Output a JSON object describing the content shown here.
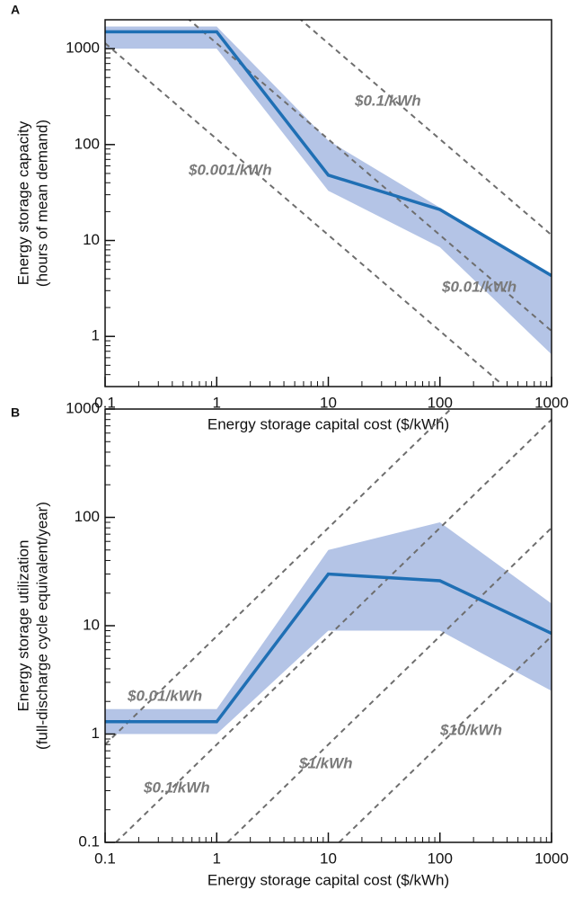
{
  "chart_data": [
    {
      "type": "line",
      "panel_label": "A",
      "xlabel": "Energy storage capital cost ($/kWh)",
      "ylabel": [
        "Energy storage capacity",
        "(hours of mean demand)"
      ],
      "log_x": true,
      "log_y": true,
      "minor_ticks": true,
      "x": [
        0.1,
        1,
        10,
        100,
        1000
      ],
      "xlim": [
        0.1,
        1000
      ],
      "xticks": [
        0.1,
        1,
        10,
        100,
        1000
      ],
      "ylim": [
        0.3,
        2000
      ],
      "yticks": [
        1,
        10,
        100,
        1000
      ],
      "series": [
        {
          "color": "#1f6fb4",
          "values": [
            1500,
            1500,
            48,
            21,
            4.3
          ]
        }
      ],
      "band": {
        "color": "#b4c4e6",
        "upper": [
          1700,
          1700,
          110,
          22,
          4.5
        ],
        "lower": [
          1000,
          1000,
          33,
          8.5,
          0.65
        ]
      },
      "reference_lines": [
        {
          "label": "$0.1/kWh",
          "x": [
            5.4,
            1000
          ],
          "y": [
            2100,
            11.4
          ]
        },
        {
          "label": "$0.01/kWh",
          "x": [
            0.54,
            1000
          ],
          "y": [
            2100,
            1.14
          ]
        },
        {
          "label": "$0.001/kWh",
          "x": [
            0.1,
            356
          ],
          "y": [
            1140,
            0.32
          ]
        }
      ]
    },
    {
      "type": "line",
      "panel_label": "B",
      "xlabel": "Energy storage capital cost ($/kWh)",
      "ylabel": [
        "Energy storage utilization",
        "(full-discharge cycle equivalent/year)"
      ],
      "log_x": true,
      "log_y": true,
      "minor_ticks": true,
      "x": [
        0.1,
        1,
        10,
        100,
        1000
      ],
      "xlim": [
        0.1,
        1000
      ],
      "xticks": [
        0.1,
        1,
        10,
        100,
        1000
      ],
      "ylim": [
        0.1,
        1000
      ],
      "yticks": [
        0.1,
        1,
        10,
        100,
        1000
      ],
      "series": [
        {
          "color": "#1f6fb4",
          "values": [
            1.3,
            1.3,
            30,
            26,
            8.5
          ]
        }
      ],
      "band": {
        "color": "#b4c4e6",
        "upper": [
          1.7,
          1.7,
          50,
          90,
          16
        ],
        "lower": [
          1.0,
          1.0,
          9,
          9,
          2.5
        ]
      },
      "reference_lines": [
        {
          "label": "$0.01/kWh",
          "x": [
            0.1,
            125
          ],
          "y": [
            0.8,
            1000
          ]
        },
        {
          "label": "$0.1/kWh",
          "x": [
            0.125,
            1000
          ],
          "y": [
            0.1,
            800
          ]
        },
        {
          "label": "$1/kWh",
          "x": [
            1.25,
            1000
          ],
          "y": [
            0.1,
            80
          ]
        },
        {
          "label": "$10/kWh",
          "x": [
            12.5,
            1000
          ],
          "y": [
            0.1,
            8
          ]
        }
      ]
    }
  ]
}
